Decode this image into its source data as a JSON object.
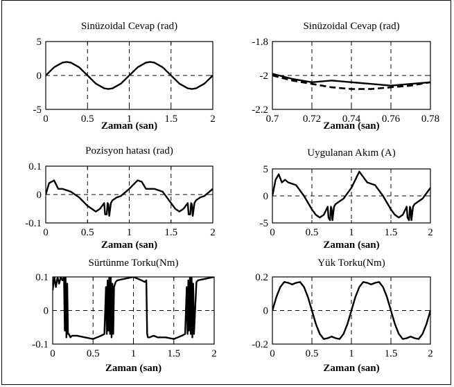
{
  "chart_data": [
    {
      "type": "line",
      "title": "Sinüzoidal Cevap (rad)",
      "xlabel": "Zaman (san)",
      "ylabel": "",
      "xlim": [
        0,
        2
      ],
      "ylim": [
        -5,
        5
      ],
      "xticks": [
        0,
        0.5,
        1,
        1.5,
        2
      ],
      "xtick_labels": [
        "0",
        "0.5",
        "1",
        "1.5",
        "2"
      ],
      "yticks": [
        -5,
        0,
        5
      ],
      "ytick_labels": [
        "-5",
        "0",
        "5"
      ],
      "grid": true,
      "series": [
        {
          "style": "solid",
          "x": [
            0,
            0.1,
            0.2,
            0.25,
            0.3,
            0.4,
            0.5,
            0.6,
            0.7,
            0.75,
            0.8,
            0.9,
            1.0,
            1.1,
            1.2,
            1.25,
            1.3,
            1.4,
            1.5,
            1.6,
            1.7,
            1.75,
            1.8,
            1.9,
            2.0
          ],
          "y": [
            0,
            1.2,
            1.9,
            2.0,
            1.9,
            1.2,
            0,
            -1.2,
            -1.9,
            -2.0,
            -1.9,
            -1.2,
            0,
            1.2,
            1.9,
            2.0,
            1.9,
            1.2,
            0,
            -1.2,
            -1.9,
            -2.0,
            -1.9,
            -1.2,
            0
          ]
        }
      ]
    },
    {
      "type": "line",
      "title": "Sinüzoidal Cevap (rad)",
      "xlabel": "Zaman (san)",
      "ylabel": "",
      "xlim": [
        0.7,
        0.78
      ],
      "ylim": [
        -2.2,
        -1.8
      ],
      "xticks": [
        0.7,
        0.72,
        0.74,
        0.76,
        0.78
      ],
      "xtick_labels": [
        "0.7",
        "0.72",
        "0.74",
        "0.76",
        "0.78"
      ],
      "yticks": [
        -2.2,
        -2,
        -1.8
      ],
      "ytick_labels": [
        "-2.2",
        "-2",
        "-1.8"
      ],
      "grid": true,
      "series": [
        {
          "style": "solid",
          "x": [
            0.7,
            0.71,
            0.72,
            0.73,
            0.74,
            0.75,
            0.76,
            0.77,
            0.78
          ],
          "y": [
            -1.99,
            -2.02,
            -2.04,
            -2.03,
            -2.04,
            -2.05,
            -2.06,
            -2.05,
            -2.04
          ]
        },
        {
          "style": "dashed",
          "x": [
            0.7,
            0.71,
            0.72,
            0.73,
            0.74,
            0.75,
            0.76,
            0.77,
            0.78
          ],
          "y": [
            -2.0,
            -2.03,
            -2.05,
            -2.07,
            -2.08,
            -2.08,
            -2.07,
            -2.06,
            -2.04
          ]
        }
      ]
    },
    {
      "type": "line",
      "title": "Pozisyon hatası (rad)",
      "xlabel": "Zaman (san)",
      "ylabel": "",
      "xlim": [
        0,
        2
      ],
      "ylim": [
        -0.1,
        0.1
      ],
      "xticks": [
        0,
        0.5,
        1,
        1.5,
        2
      ],
      "xtick_labels": [
        "0",
        "0.5",
        "1",
        "1.5",
        "2"
      ],
      "yticks": [
        -0.1,
        0,
        0.1
      ],
      "ytick_labels": [
        "-0.1",
        "0",
        "0.1"
      ],
      "grid": true,
      "series": [
        {
          "style": "solid",
          "x": [
            0,
            0.04,
            0.1,
            0.15,
            0.2,
            0.3,
            0.4,
            0.5,
            0.55,
            0.6,
            0.65,
            0.7,
            0.71,
            0.73,
            0.74,
            0.75,
            0.76,
            0.78,
            0.8,
            0.85,
            0.9,
            1.0,
            1.05,
            1.1,
            1.15,
            1.2,
            1.3,
            1.4,
            1.5,
            1.55,
            1.6,
            1.65,
            1.7,
            1.71,
            1.73,
            1.74,
            1.75,
            1.76,
            1.78,
            1.8,
            1.85,
            1.9,
            2.0
          ],
          "y": [
            0,
            0.04,
            0.05,
            0.02,
            0.02,
            0.01,
            -0.01,
            -0.04,
            -0.05,
            -0.06,
            -0.05,
            -0.03,
            -0.07,
            -0.07,
            -0.03,
            -0.035,
            -0.075,
            -0.03,
            -0.02,
            -0.01,
            -0.005,
            0.02,
            0.035,
            0.05,
            0.045,
            0.02,
            0.02,
            0.01,
            -0.03,
            -0.05,
            -0.06,
            -0.05,
            -0.03,
            -0.07,
            -0.07,
            -0.03,
            -0.035,
            -0.075,
            -0.03,
            -0.02,
            -0.01,
            -0.005,
            0.02
          ]
        }
      ]
    },
    {
      "type": "line",
      "title": "Uygulanan Akım (A)",
      "xlabel": "Zaman (san)",
      "ylabel": "",
      "xlim": [
        0,
        2
      ],
      "ylim": [
        -5,
        5
      ],
      "xticks": [
        0,
        0.5,
        1,
        1.5,
        2
      ],
      "xtick_labels": [
        "0",
        "0.5",
        "1",
        "1.5",
        "2"
      ],
      "yticks": [
        -5,
        0,
        5
      ],
      "ytick_labels": [
        "-5",
        "0",
        "5"
      ],
      "grid": true,
      "series": [
        {
          "style": "solid",
          "x": [
            0,
            0.04,
            0.08,
            0.12,
            0.16,
            0.2,
            0.3,
            0.4,
            0.5,
            0.55,
            0.6,
            0.65,
            0.7,
            0.71,
            0.73,
            0.74,
            0.75,
            0.76,
            0.78,
            0.8,
            0.9,
            1.0,
            1.05,
            1.1,
            1.15,
            1.2,
            1.3,
            1.4,
            1.5,
            1.55,
            1.6,
            1.65,
            1.7,
            1.71,
            1.73,
            1.74,
            1.75,
            1.76,
            1.78,
            1.8,
            1.9,
            2.0
          ],
          "y": [
            0,
            3,
            4,
            2.5,
            3,
            2.5,
            2,
            0,
            -2.5,
            -3.5,
            -4,
            -3.5,
            -2,
            -4,
            -4.5,
            -2,
            -2.5,
            -4.5,
            -2,
            -1.5,
            -0.5,
            1.5,
            3,
            4.5,
            3.5,
            2.5,
            2,
            0,
            -2.5,
            -3.5,
            -4,
            -3.5,
            -2,
            -4,
            -4.5,
            -2,
            -2.5,
            -4.5,
            -2,
            -1.5,
            -0.5,
            1.5
          ]
        }
      ]
    },
    {
      "type": "line",
      "title": "Sürtünme Torku(Nm)",
      "xlabel": "Zaman (san)",
      "ylabel": "",
      "xlim": [
        0,
        2
      ],
      "ylim": [
        -0.1,
        0.1
      ],
      "xticks": [
        0,
        0.5,
        1,
        1.5,
        2
      ],
      "xtick_labels": [
        "0",
        "0.5",
        "1",
        "1.5",
        "2"
      ],
      "yticks": [
        -0.1,
        0,
        0.1
      ],
      "ytick_labels": [
        "-0.1",
        "0",
        "0.1"
      ],
      "grid": true,
      "series": [
        {
          "style": "solid",
          "x": [
            0,
            0.02,
            0.04,
            0.06,
            0.08,
            0.1,
            0.12,
            0.14,
            0.15,
            0.16,
            0.17,
            0.18,
            0.19,
            0.2,
            0.22,
            0.24,
            0.3,
            0.4,
            0.5,
            0.6,
            0.64,
            0.66,
            0.67,
            0.68,
            0.69,
            0.7,
            0.71,
            0.72,
            0.73,
            0.74,
            0.75,
            0.76,
            0.78,
            0.8,
            0.9,
            1.0,
            1.1,
            1.14,
            1.16,
            1.17,
            1.18,
            1.2,
            1.25,
            1.3,
            1.4,
            1.5,
            1.6,
            1.64,
            1.66,
            1.67,
            1.68,
            1.69,
            1.7,
            1.71,
            1.72,
            1.73,
            1.74,
            1.75,
            1.78,
            1.8,
            1.9,
            2.0
          ],
          "y": [
            0.06,
            0.1,
            0.07,
            0.1,
            0.08,
            0.1,
            0.09,
            0.1,
            -0.06,
            0.1,
            -0.08,
            0.08,
            -0.07,
            -0.07,
            -0.08,
            -0.075,
            -0.075,
            -0.08,
            -0.085,
            -0.075,
            -0.07,
            0.07,
            -0.07,
            0.09,
            -0.06,
            0.1,
            -0.07,
            0.1,
            -0.08,
            0.08,
            -0.07,
            0.07,
            0.085,
            0.09,
            0.095,
            0.1,
            0.09,
            0.085,
            0.09,
            -0.07,
            -0.08,
            -0.08,
            -0.075,
            -0.08,
            -0.08,
            -0.085,
            -0.075,
            -0.07,
            0.07,
            -0.07,
            0.09,
            -0.06,
            0.1,
            -0.07,
            0.1,
            -0.08,
            0.08,
            -0.07,
            0.085,
            0.09,
            0.095,
            0.1
          ]
        }
      ]
    },
    {
      "type": "line",
      "title": "Yük Torku(Nm)",
      "xlabel": "Zaman (san)",
      "ylabel": "",
      "xlim": [
        0,
        2
      ],
      "ylim": [
        -0.2,
        0.2
      ],
      "xticks": [
        0,
        0.5,
        1,
        1.5,
        2
      ],
      "xtick_labels": [
        "0",
        "0.5",
        "1",
        "1.5",
        "2"
      ],
      "yticks": [
        -0.2,
        0,
        0.2
      ],
      "ytick_labels": [
        "-0.2",
        "0",
        "0.2"
      ],
      "grid": true,
      "series": [
        {
          "style": "solid",
          "x": [
            0,
            0.05,
            0.1,
            0.15,
            0.2,
            0.25,
            0.3,
            0.35,
            0.4,
            0.45,
            0.5,
            0.55,
            0.6,
            0.65,
            0.7,
            0.75,
            0.8,
            0.85,
            0.9,
            0.95,
            1.0,
            1.05,
            1.1,
            1.15,
            1.2,
            1.25,
            1.3,
            1.35,
            1.4,
            1.45,
            1.5,
            1.55,
            1.6,
            1.65,
            1.7,
            1.75,
            1.8,
            1.85,
            1.9,
            1.95,
            2.0
          ],
          "y": [
            0,
            0.08,
            0.14,
            0.17,
            0.165,
            0.155,
            0.165,
            0.17,
            0.14,
            0.08,
            0,
            -0.08,
            -0.14,
            -0.17,
            -0.165,
            -0.155,
            -0.165,
            -0.17,
            -0.14,
            -0.08,
            0,
            0.08,
            0.14,
            0.17,
            0.165,
            0.155,
            0.165,
            0.17,
            0.14,
            0.08,
            0,
            -0.08,
            -0.14,
            -0.17,
            -0.165,
            -0.155,
            -0.165,
            -0.17,
            -0.14,
            -0.08,
            0
          ]
        }
      ]
    }
  ]
}
